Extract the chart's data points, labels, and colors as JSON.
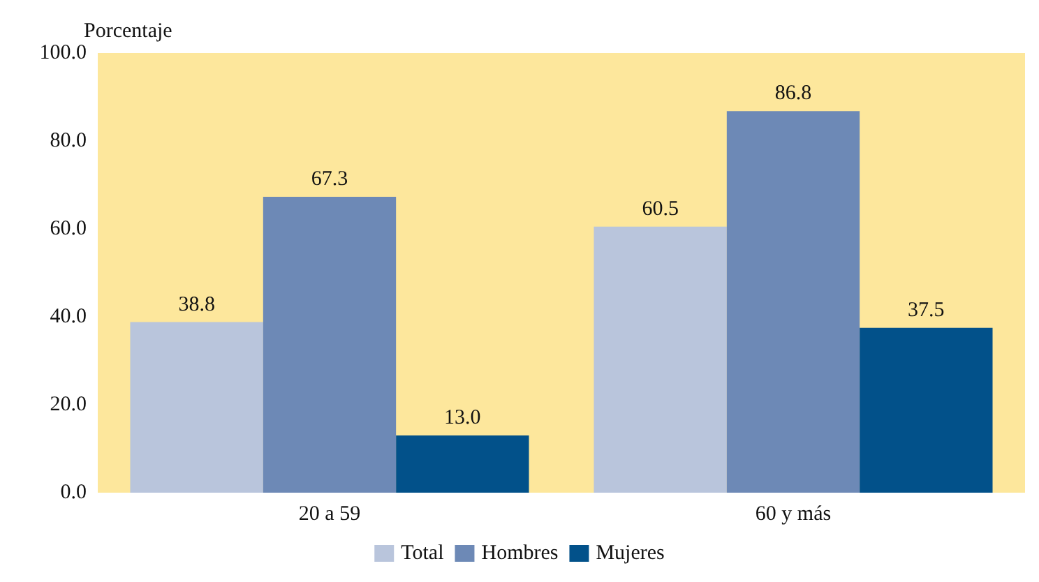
{
  "chart_data": {
    "type": "bar",
    "ylabel": "Porcentaje",
    "categories": [
      "20 a 59",
      "60 y más"
    ],
    "series": [
      {
        "name": "Total",
        "color": "#b9c5dc",
        "values": [
          38.8,
          60.5
        ],
        "value_labels": [
          "38.8",
          "60.5"
        ]
      },
      {
        "name": "Hombres",
        "color": "#6d89b6",
        "values": [
          67.3,
          86.8
        ],
        "value_labels": [
          "67.3",
          "86.8"
        ]
      },
      {
        "name": "Mujeres",
        "color": "#02518a",
        "values": [
          13.0,
          37.5
        ],
        "value_labels": [
          "13.0",
          "37.5"
        ]
      }
    ],
    "ylim": [
      0,
      100
    ],
    "yticks": [
      {
        "value": 0,
        "label": "0.0"
      },
      {
        "value": 20,
        "label": "20.0"
      },
      {
        "value": 40,
        "label": "40.0"
      },
      {
        "value": 60,
        "label": "60.0"
      },
      {
        "value": 80,
        "label": "80.0"
      },
      {
        "value": 100,
        "label": "100.0"
      }
    ],
    "grid": false,
    "legend": "bottom"
  }
}
